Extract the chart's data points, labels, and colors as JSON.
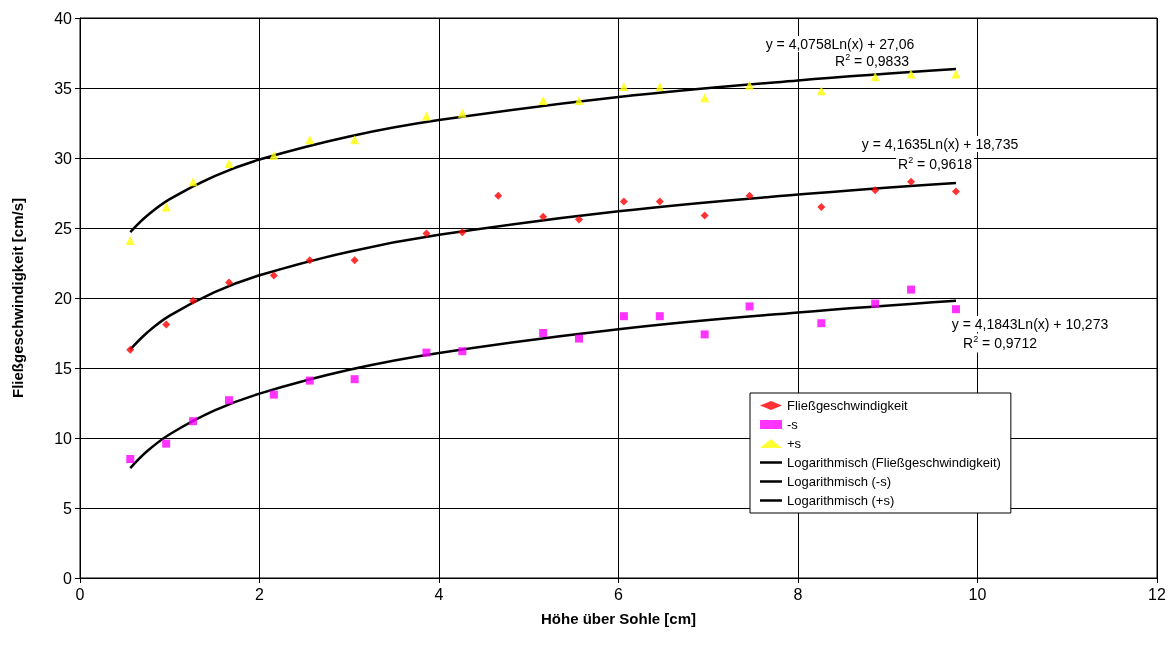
{
  "chart_data": {
    "type": "scatter",
    "xlabel": "Höhe über Sohle [cm]",
    "ylabel": "Fließgeschwindigkeit [cm/s]",
    "x": [
      0.56,
      0.96,
      1.26,
      1.66,
      2.16,
      2.56,
      3.06,
      3.86,
      4.26,
      4.66,
      5.16,
      5.56,
      6.06,
      6.46,
      6.96,
      7.46,
      8.26,
      8.86,
      9.26,
      9.76
    ],
    "series": [
      {
        "name": "Fließgeschwindigkeit",
        "color": "#ff0000",
        "marker": "diamond",
        "values": [
          16.3,
          18.1,
          19.8,
          21.1,
          21.6,
          22.7,
          22.7,
          24.6,
          24.7,
          27.3,
          25.8,
          25.6,
          26.9,
          26.9,
          25.9,
          27.3,
          26.5,
          27.7,
          28.3,
          27.6
        ]
      },
      {
        "name": "-s",
        "color": "#ff00ff",
        "marker": "square",
        "values": [
          8.5,
          9.6,
          11.2,
          12.7,
          13.1,
          14.1,
          14.2,
          16.1,
          16.2,
          null,
          17.5,
          17.1,
          18.7,
          18.7,
          17.4,
          19.4,
          18.2,
          19.6,
          20.6,
          19.2
        ]
      },
      {
        "name": "+s",
        "color": "#ffff00",
        "marker": "triangle",
        "values": [
          24.1,
          26.5,
          28.3,
          29.6,
          30.2,
          31.3,
          31.3,
          33.0,
          33.2,
          null,
          34.1,
          34.1,
          35.1,
          35.1,
          34.3,
          35.2,
          34.8,
          35.8,
          36.0,
          36.0
        ]
      },
      {
        "name": "Logarithmisch (Fließgeschwindigkeit)",
        "type": "line",
        "color": "#000000",
        "marker": "none",
        "x": [
          0.56,
          0.75,
          1,
          1.5,
          2,
          3,
          4,
          6,
          8,
          9.76
        ],
        "values": [
          16.32,
          17.54,
          18.74,
          20.42,
          21.62,
          23.31,
          24.51,
          26.19,
          27.39,
          28.22
        ]
      },
      {
        "name": "Logarithmisch (-s)",
        "type": "line",
        "color": "#000000",
        "marker": "none",
        "x": [
          0.56,
          0.75,
          1,
          1.5,
          2,
          3,
          4,
          6,
          8,
          9.76
        ],
        "values": [
          7.85,
          9.07,
          10.27,
          11.97,
          13.17,
          14.87,
          16.07,
          17.77,
          18.97,
          19.81
        ]
      },
      {
        "name": "Logarithmisch (+s)",
        "type": "line",
        "color": "#000000",
        "marker": "none",
        "x": [
          0.56,
          0.75,
          1,
          1.5,
          2,
          3,
          4,
          6,
          8,
          9.76
        ],
        "values": [
          24.7,
          25.89,
          27.06,
          28.71,
          29.89,
          31.54,
          32.71,
          34.36,
          35.54,
          36.35
        ]
      }
    ],
    "annotations": [
      "y = 4,0758Ln(x) + 27,06",
      "R$^{2}$ = 0,9833",
      "y = 4,1635Ln(x) + 18,735",
      "R$^{2}$ = 0,9618",
      "y = 4,1843Ln(x) + 10,273",
      "R$^{2}$ = 0,9712"
    ],
    "xlim": [
      0,
      12
    ],
    "xticks": [
      0,
      2,
      4,
      6,
      8,
      10,
      12
    ],
    "ylim": [
      0,
      40
    ],
    "yticks": [
      0,
      5,
      10,
      15,
      20,
      25,
      30,
      35,
      40
    ],
    "grid": true,
    "legend": "bottom right"
  }
}
